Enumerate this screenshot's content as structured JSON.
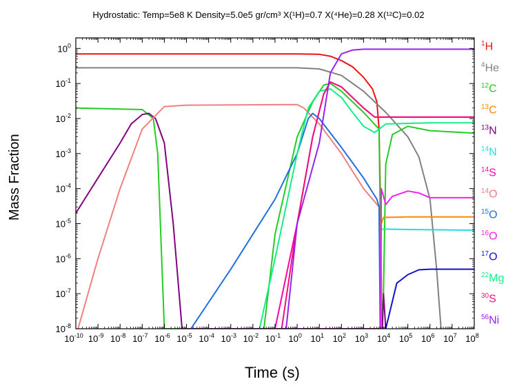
{
  "chart_data": {
    "type": "line",
    "title": "Hydrostatic: Temp=5e8 K   Density=5.0e5 gr/cm³   X(¹H)=0.7 X(⁴He)=0.28 X(¹²C)=0.02",
    "xlabel": "Time (s)",
    "ylabel": "Mass Fraction",
    "xscale": "log",
    "yscale": "log",
    "xlim": [
      1e-10,
      100000000.0
    ],
    "ylim": [
      1e-08,
      2
    ],
    "x_tick_labels": [
      "10-10",
      "10-9",
      "10-8",
      "10-7",
      "10-6",
      "10-5",
      "10-4",
      "10-3",
      "10-2",
      "10-1",
      "100",
      "101",
      "102",
      "103",
      "104",
      "105",
      "106",
      "107",
      "108"
    ],
    "y_tick_labels": [
      "10-8",
      "10-7",
      "10-6",
      "10-5",
      "10-4",
      "10-3",
      "10-2",
      "10-1",
      "100"
    ],
    "grid": false,
    "legend_position": "right",
    "series": [
      {
        "name": "1H",
        "mass": "1",
        "elem": "H",
        "color": "#ee1111",
        "points": [
          [
            -10,
            0.7
          ],
          [
            0,
            0.7
          ],
          [
            1,
            0.68
          ],
          [
            1.5,
            0.6
          ],
          [
            2,
            0.45
          ],
          [
            2.5,
            0.3
          ],
          [
            3,
            0.15
          ],
          [
            3.4,
            0.07
          ],
          [
            3.6,
            0.03
          ],
          [
            3.7,
            0.005
          ],
          [
            3.78,
            1e-05
          ],
          [
            3.82,
            1e-08
          ]
        ]
      },
      {
        "name": "4He",
        "mass": "4",
        "elem": "He",
        "color": "#808080",
        "points": [
          [
            -10,
            0.28
          ],
          [
            0,
            0.28
          ],
          [
            1,
            0.26
          ],
          [
            2,
            0.17
          ],
          [
            3,
            0.06
          ],
          [
            4,
            0.015
          ],
          [
            5,
            0.003
          ],
          [
            5.5,
            0.0008
          ],
          [
            6,
            5e-05
          ],
          [
            6.3,
            5e-07
          ],
          [
            6.5,
            1e-08
          ]
        ]
      },
      {
        "name": "12C",
        "mass": "12",
        "elem": "C",
        "color": "#22cc22",
        "points": [
          [
            -10,
            0.02
          ],
          [
            -7,
            0.018
          ],
          [
            -6.5,
            0.01
          ],
          [
            -6.3,
            0.001
          ],
          [
            -6,
            1e-08
          ],
          [
            -1.5,
            1e-08
          ],
          [
            -1,
            5e-06
          ],
          [
            0,
            0.003
          ],
          [
            0.7,
            0.03
          ],
          [
            1.2,
            0.09
          ],
          [
            1.5,
            0.1
          ],
          [
            2,
            0.06
          ],
          [
            3,
            0.015
          ],
          [
            3.7,
            0.005
          ],
          [
            3.82,
            1e-08
          ],
          [
            3.9,
            1e-07
          ],
          [
            4,
            0.0005
          ],
          [
            4.3,
            0.0035
          ],
          [
            5,
            0.006
          ],
          [
            6,
            0.0045
          ],
          [
            8,
            0.0038
          ]
        ]
      },
      {
        "name": "13C",
        "mass": "13",
        "elem": "C",
        "color": "#ff8800",
        "points": [
          [
            3.77,
            1e-08
          ],
          [
            3.8,
            1e-05
          ],
          [
            3.9,
            1.5e-05
          ],
          [
            5,
            1.55e-05
          ],
          [
            8,
            1.55e-05
          ]
        ]
      },
      {
        "name": "13N",
        "mass": "13",
        "elem": "N",
        "color": "#800080",
        "points": [
          [
            -10,
            2e-05
          ],
          [
            -9,
            0.0002
          ],
          [
            -8,
            0.002
          ],
          [
            -7.5,
            0.007
          ],
          [
            -7,
            0.013
          ],
          [
            -6.7,
            0.014
          ],
          [
            -6.4,
            0.01
          ],
          [
            -6,
            0.002
          ],
          [
            -5.6,
            1e-05
          ],
          [
            -5.2,
            1e-08
          ],
          [
            3.85,
            1e-08
          ],
          [
            3.9,
            1e-07
          ],
          [
            4,
            1e-08
          ]
        ]
      },
      {
        "name": "14N",
        "mass": "14",
        "elem": "N",
        "color": "#22dddd",
        "points": [
          [
            3.77,
            1e-08
          ],
          [
            3.8,
            7e-06
          ],
          [
            5,
            6.8e-06
          ],
          [
            8,
            6.5e-06
          ]
        ]
      },
      {
        "name": "14S",
        "mass": "14",
        "elem": "S",
        "color": "#ff00aa",
        "points": [
          [
            -1,
            1e-08
          ],
          [
            0,
            1e-05
          ],
          [
            0.7,
            0.003
          ],
          [
            1.2,
            0.05
          ],
          [
            1.5,
            0.11
          ],
          [
            2,
            0.08
          ],
          [
            3,
            0.02
          ],
          [
            3.5,
            0.011
          ],
          [
            8,
            0.011
          ]
        ]
      },
      {
        "name": "14O",
        "mass": "14",
        "elem": "O",
        "color": "#f08080",
        "points": [
          [
            -9.9,
            1e-08
          ],
          [
            -9,
            1e-06
          ],
          [
            -8,
            0.0001
          ],
          [
            -7,
            0.005
          ],
          [
            -6,
            0.022
          ],
          [
            -5,
            0.024
          ],
          [
            0,
            0.025
          ],
          [
            0.3,
            0.02
          ],
          [
            1,
            0.007
          ],
          [
            2,
            0.001
          ],
          [
            3,
            0.0001
          ],
          [
            3.7,
            3e-05
          ],
          [
            3.8,
            1e-08
          ]
        ]
      },
      {
        "name": "15O",
        "mass": "15",
        "elem": "O",
        "color": "#1e6fdd",
        "points": [
          [
            -4.8,
            1e-08
          ],
          [
            -3,
            5e-07
          ],
          [
            -2,
            5e-06
          ],
          [
            -1,
            5e-05
          ],
          [
            0,
            0.001
          ],
          [
            0.5,
            0.01
          ],
          [
            0.7,
            0.014
          ],
          [
            1,
            0.01
          ],
          [
            2,
            0.0015
          ],
          [
            3,
            0.0002
          ],
          [
            3.6,
            5e-05
          ],
          [
            3.7,
            3e-05
          ],
          [
            3.75,
            1e-08
          ]
        ]
      },
      {
        "name": "16O",
        "mass": "16",
        "elem": "O",
        "color": "#ee22ee",
        "points": [
          [
            3.77,
            1e-08
          ],
          [
            3.8,
            0.0001
          ],
          [
            4,
            3.5e-05
          ],
          [
            4.3,
            6e-05
          ],
          [
            5,
            8.5e-05
          ],
          [
            5.5,
            7.5e-05
          ],
          [
            6,
            5.5e-05
          ],
          [
            8,
            5.5e-05
          ]
        ]
      },
      {
        "name": "17O",
        "mass": "17",
        "elem": "O",
        "color": "#1111cc",
        "points": [
          [
            4,
            1e-08
          ],
          [
            4.5,
            2e-07
          ],
          [
            5,
            3.5e-07
          ],
          [
            5.5,
            4.8e-07
          ],
          [
            6,
            5e-07
          ],
          [
            8,
            5e-07
          ]
        ]
      },
      {
        "name": "22Mg",
        "mass": "22",
        "elem": "Mg",
        "color": "#11ee88",
        "points": [
          [
            -1.7,
            1e-08
          ],
          [
            -1,
            1e-06
          ],
          [
            0,
            0.001
          ],
          [
            0.5,
            0.02
          ],
          [
            1,
            0.06
          ],
          [
            1.5,
            0.07
          ],
          [
            2,
            0.04
          ],
          [
            2.5,
            0.015
          ],
          [
            3,
            0.006
          ],
          [
            3.5,
            0.004
          ],
          [
            4,
            0.007
          ],
          [
            6,
            0.0075
          ],
          [
            8,
            0.0075
          ]
        ]
      },
      {
        "name": "30S",
        "mass": "30",
        "elem": "S",
        "color": "#ee1177",
        "points": [
          [
            -0.7,
            1e-08
          ],
          [
            0,
            1e-05
          ],
          [
            0.7,
            0.003
          ],
          [
            1.2,
            0.05
          ],
          [
            1.5,
            0.11
          ],
          [
            2,
            0.08
          ],
          [
            3,
            0.02
          ],
          [
            3.5,
            0.011
          ],
          [
            8,
            0.011
          ]
        ]
      },
      {
        "name": "56Ni",
        "mass": "56",
        "elem": "Ni",
        "color": "#9922ee",
        "points": [
          [
            -0.5,
            1e-08
          ],
          [
            0,
            1e-05
          ],
          [
            1,
            0.002
          ],
          [
            1.5,
            0.2
          ],
          [
            2,
            0.7
          ],
          [
            2.5,
            0.9
          ],
          [
            3,
            0.95
          ],
          [
            8,
            0.95
          ]
        ]
      }
    ]
  }
}
